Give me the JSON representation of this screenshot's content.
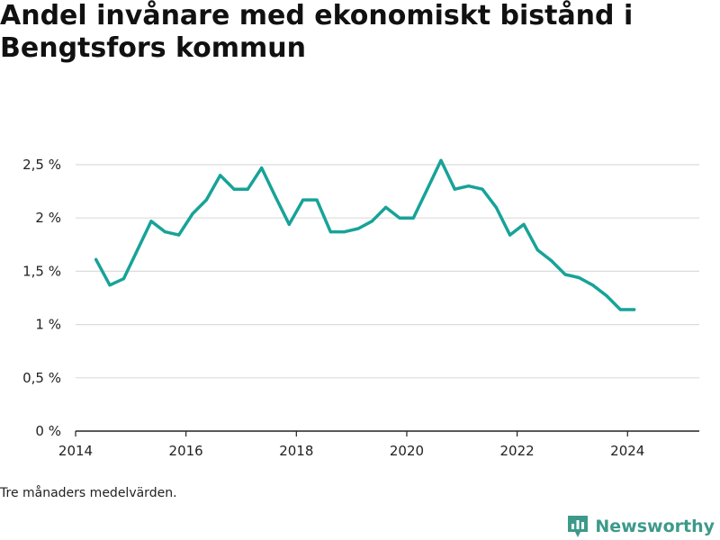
{
  "title": "Andel invånare med ekonomiskt bistånd i Bengtsfors kommun",
  "footnote": "Tre månaders medelvärden.",
  "brand": {
    "name": "Newsworthy",
    "icon": "newsworthy-logo-icon",
    "color": "#3d9a8a"
  },
  "chart_data": {
    "type": "line",
    "title": "Andel invånare med ekonomiskt bistånd i Bengtsfors kommun",
    "xlabel": "",
    "ylabel": "",
    "xlim": [
      2014.0,
      2025.3
    ],
    "ylim": [
      0,
      2.5
    ],
    "x_ticks": [
      2014,
      2016,
      2018,
      2020,
      2022,
      2024
    ],
    "y_ticks": [
      0,
      0.5,
      1,
      1.5,
      2,
      2.5
    ],
    "y_tick_labels": [
      "0 %",
      "0,5 %",
      "1 %",
      "1,5 %",
      "2 %",
      "2,5 %"
    ],
    "grid": true,
    "line_color": "#17a398",
    "series": [
      {
        "x": [
          2014.37,
          2014.62,
          2014.87,
          2015.12,
          2015.37,
          2015.62,
          2015.87,
          2016.12,
          2016.37,
          2016.62,
          2016.87,
          2017.12,
          2017.37,
          2017.62,
          2017.87,
          2018.12,
          2018.37,
          2018.62,
          2018.87,
          2019.12,
          2019.37,
          2019.62,
          2019.87,
          2020.12,
          2020.37,
          2020.62,
          2020.87,
          2021.12,
          2021.37,
          2021.62,
          2021.87,
          2022.12,
          2022.37,
          2022.62,
          2022.87,
          2023.12,
          2023.37,
          2023.62,
          2023.87,
          2024.12
        ],
        "y": [
          1.61,
          1.37,
          1.43,
          1.7,
          1.97,
          1.87,
          1.84,
          2.04,
          2.17,
          2.4,
          2.27,
          2.27,
          2.47,
          2.2,
          1.94,
          2.17,
          2.17,
          1.87,
          1.87,
          1.9,
          1.97,
          2.1,
          2.0,
          2.0,
          2.27,
          2.54,
          2.27,
          2.3,
          2.27,
          2.1,
          1.84,
          1.94,
          1.7,
          1.6,
          1.47,
          1.44,
          1.37,
          1.27,
          1.14,
          1.14
        ]
      }
    ]
  }
}
